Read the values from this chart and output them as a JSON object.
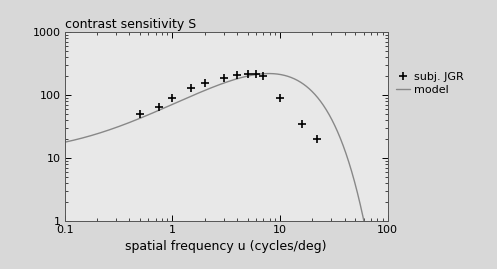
{
  "title": "contrast sensitivity S",
  "xlabel": "spatial frequency u (cycles/deg)",
  "xlim": [
    0.1,
    100
  ],
  "ylim": [
    1,
    1000
  ],
  "plot_bg": "#e8e8e8",
  "fig_bg": "#d8d8d8",
  "line_color": "#888888",
  "marker_color": "#000000",
  "data_points_x": [
    0.5,
    0.75,
    1.0,
    1.5,
    2.0,
    3.0,
    4.0,
    5.0,
    6.0,
    7.0,
    10.0,
    16.0,
    22.0
  ],
  "data_points_y": [
    50,
    65,
    90,
    130,
    155,
    185,
    205,
    215,
    220,
    200,
    90,
    35,
    20
  ],
  "csf_a": 0.0192,
  "csf_b": 0.114,
  "csf_peak_u": 4.0,
  "csf_peak_val": 220.0,
  "legend_marker_label": "subj. JGR",
  "legend_line_label": "model",
  "title_fontsize": 9,
  "xlabel_fontsize": 9,
  "tick_fontsize": 8,
  "legend_fontsize": 8
}
